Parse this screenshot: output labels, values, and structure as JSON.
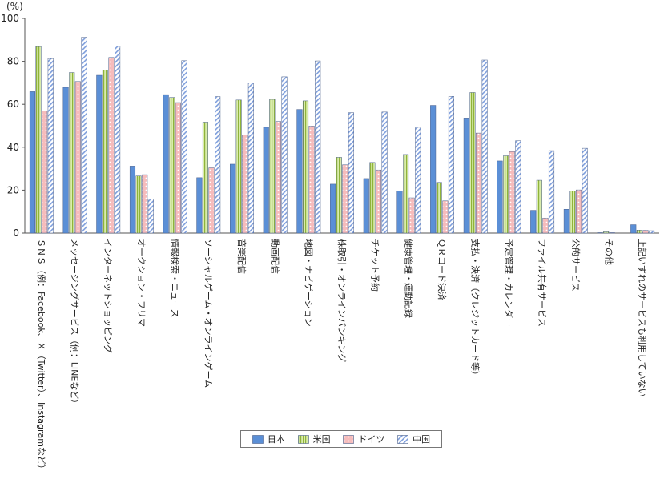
{
  "chart_data": {
    "type": "bar",
    "unit": "(%)",
    "ylim": [
      0,
      100
    ],
    "yticks": [
      0,
      20,
      40,
      60,
      80,
      100
    ],
    "grid": false,
    "legend_position": "bottom",
    "categories": [
      "ＳＮＳ（例：Facebook、Ｘ（Twitter）、Instagramなど）",
      "メッセージングサービス（例：LINEなど）",
      "インターネットショッピング",
      "オークション・フリマ",
      "情報検索・ニュース",
      "ソーシャルゲーム・オンラインゲーム",
      "音楽配信",
      "動画配信",
      "地図・ナビゲーション",
      "株取引・オンラインバンキング",
      "チケット予約",
      "健康管理・運動記録",
      "ＱＲコード決済",
      "支払・決済（クレジットカード等）",
      "予定管理・カレンダー",
      "ファイル共有サービス",
      "公的サービス",
      "その他",
      "上記いずれのサービスも利用していない"
    ],
    "series": [
      {
        "name": "日本",
        "color": "#5b8fd6",
        "pattern": "solid",
        "values": [
          65.9,
          67.9,
          73.5,
          31.2,
          64.5,
          25.8,
          32.1,
          49.3,
          57.6,
          22.8,
          25.4,
          19.5,
          59.5,
          53.6,
          33.6,
          10.6,
          11.1,
          0.2,
          3.9
        ]
      },
      {
        "name": "米国",
        "color": "#c8e08a",
        "pattern": "vertical-stripes",
        "values": [
          86.9,
          74.8,
          75.9,
          26.6,
          63.2,
          51.7,
          62.0,
          62.3,
          61.6,
          35.3,
          32.9,
          36.6,
          23.6,
          65.5,
          36.0,
          24.6,
          19.6,
          0.6,
          1.4
        ]
      },
      {
        "name": "ドイツ",
        "color": "#f4b6b6",
        "pattern": "dots",
        "values": [
          56.9,
          70.6,
          81.8,
          27.2,
          60.8,
          30.4,
          45.8,
          52.0,
          49.9,
          31.8,
          29.4,
          16.4,
          15.0,
          46.6,
          38.0,
          7.0,
          20.1,
          0.2,
          1.3
        ]
      },
      {
        "name": "中国",
        "color": "#7fa0de",
        "pattern": "diagonal-stripes",
        "values": [
          81.3,
          91.2,
          87.1,
          15.8,
          80.3,
          63.6,
          69.9,
          72.8,
          80.2,
          56.1,
          56.4,
          49.3,
          63.7,
          80.6,
          43.0,
          38.4,
          39.5,
          0.0,
          1.1
        ]
      }
    ]
  }
}
